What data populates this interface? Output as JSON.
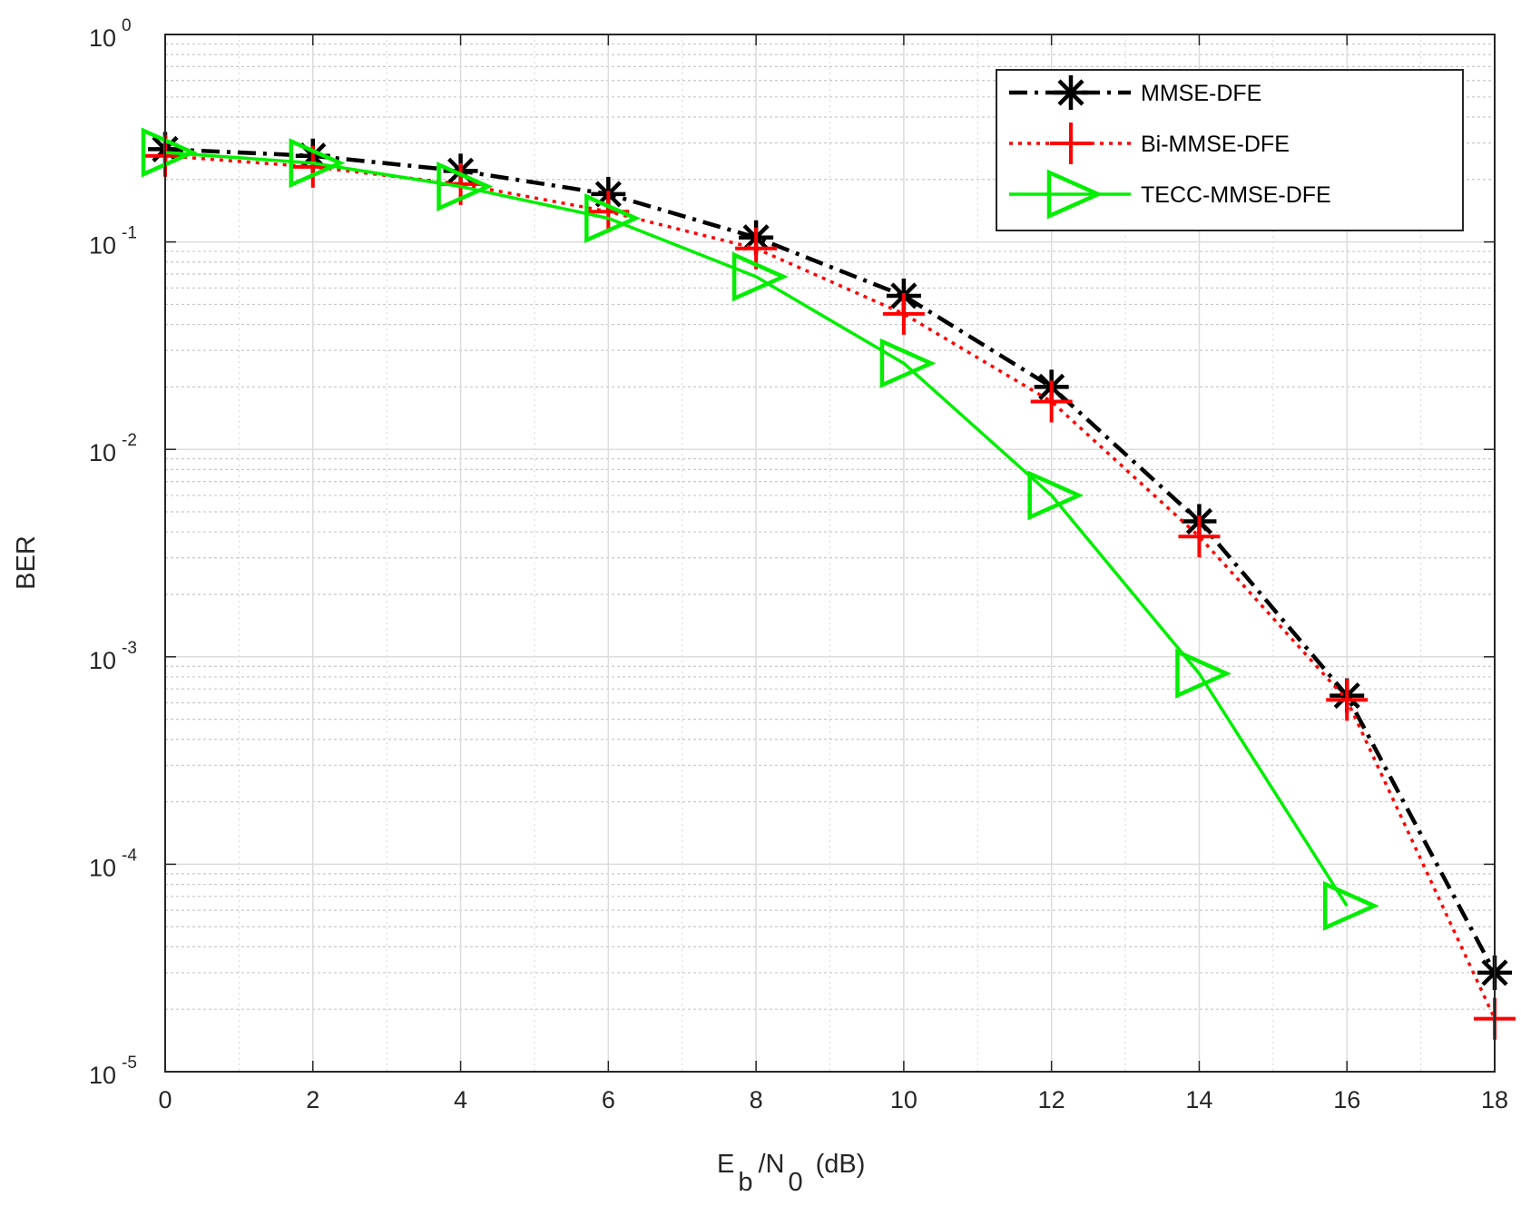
{
  "chart_data": {
    "type": "line",
    "xlabel": {
      "E": "E",
      "b": "b",
      "slashN": "/N",
      "zero": "0",
      "unit": "(dB)"
    },
    "ylabel": "BER",
    "xlim": [
      0,
      18
    ],
    "ylim": [
      1e-05,
      1
    ],
    "y_scale": "log",
    "grid": true,
    "minor_grid": true,
    "legend_position": "top-right",
    "x_ticks": [
      0,
      2,
      4,
      6,
      8,
      10,
      12,
      14,
      16,
      18
    ],
    "x_tick_labels": [
      "0",
      "2",
      "4",
      "6",
      "8",
      "10",
      "12",
      "14",
      "16",
      "18"
    ],
    "y_ticks": [
      {
        "value": 1,
        "base": "10",
        "exp": "0"
      },
      {
        "value": 0.1,
        "base": "10",
        "exp": "-1"
      },
      {
        "value": 0.01,
        "base": "10",
        "exp": "-2"
      },
      {
        "value": 0.001,
        "base": "10",
        "exp": "-3"
      },
      {
        "value": 0.0001,
        "base": "10",
        "exp": "-4"
      },
      {
        "value": 1e-05,
        "base": "10",
        "exp": "-5"
      }
    ],
    "series": [
      {
        "name": "MMSE-DFE",
        "color": "#000000",
        "line_style": "dash-dot",
        "marker": "asterisk",
        "x": [
          0,
          2,
          4,
          6,
          8,
          10,
          12,
          14,
          16,
          18
        ],
        "y": [
          0.28,
          0.26,
          0.22,
          0.17,
          0.105,
          0.055,
          0.02,
          0.0045,
          0.00065,
          3e-05
        ]
      },
      {
        "name": "Bi-MMSE-DFE",
        "color": "#ff0000",
        "line_style": "dotted",
        "marker": "plus",
        "x": [
          0,
          2,
          4,
          6,
          8,
          10,
          12,
          14,
          16,
          18
        ],
        "y": [
          0.26,
          0.23,
          0.19,
          0.14,
          0.093,
          0.045,
          0.017,
          0.0038,
          0.00062,
          1.8e-05
        ]
      },
      {
        "name": "TECC-MMSE-DFE",
        "color": "#00ee00",
        "line_style": "solid",
        "marker": "triangle-right",
        "x": [
          0,
          2,
          4,
          6,
          8,
          10,
          12,
          14,
          16
        ],
        "y": [
          0.27,
          0.24,
          0.185,
          0.13,
          0.068,
          0.026,
          0.006,
          0.00083,
          6.3e-05
        ]
      }
    ]
  }
}
